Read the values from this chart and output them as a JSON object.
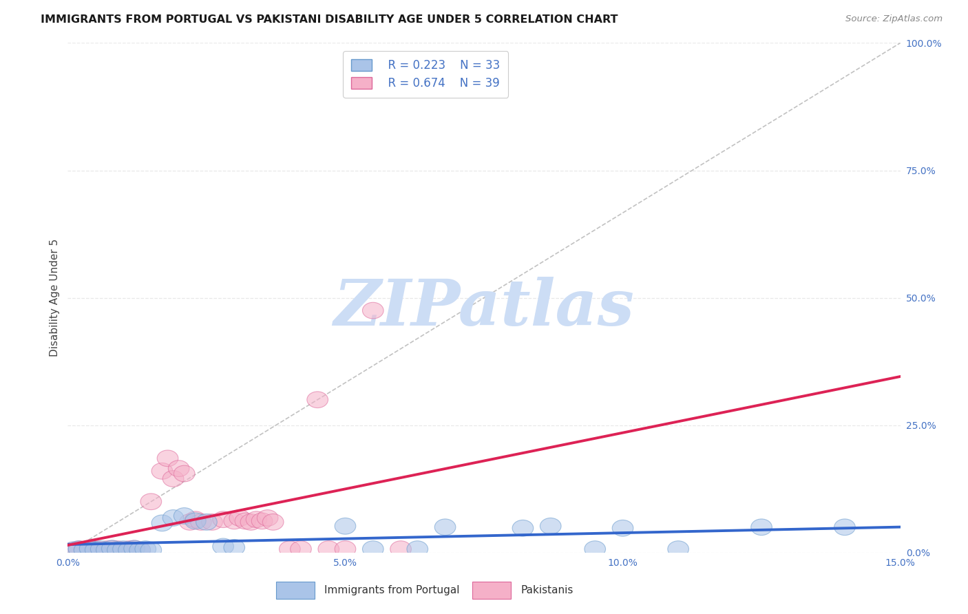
{
  "title": "IMMIGRANTS FROM PORTUGAL VS PAKISTANI DISABILITY AGE UNDER 5 CORRELATION CHART",
  "source": "Source: ZipAtlas.com",
  "ylabel": "Disability Age Under 5",
  "xlim": [
    0.0,
    0.15
  ],
  "ylim": [
    0.0,
    1.0
  ],
  "xticks": [
    0.0,
    0.05,
    0.1,
    0.15
  ],
  "xticklabels": [
    "0.0%",
    "5.0%",
    "10.0%",
    "15.0%"
  ],
  "yticks": [
    0.0,
    0.25,
    0.5,
    0.75,
    1.0
  ],
  "yticklabels": [
    "0.0%",
    "25.0%",
    "50.0%",
    "75.0%",
    "100.0%"
  ],
  "series1_label": "Immigrants from Portugal",
  "series1_R": "R = 0.223",
  "series1_N": "N = 33",
  "series1_marker_color": "#aac4e8",
  "series1_edge_color": "#6699cc",
  "series1_trend_color": "#3366cc",
  "series2_label": "Pakistanis",
  "series2_R": "R = 0.674",
  "series2_N": "N = 39",
  "series2_marker_color": "#f5b0c8",
  "series2_edge_color": "#dd6699",
  "series2_trend_color": "#dd2255",
  "ref_line_color": "#bbbbbb",
  "background_color": "#ffffff",
  "grid_color": "#e8e8e8",
  "title_fontsize": 11.5,
  "axis_label_fontsize": 11,
  "tick_fontsize": 10,
  "legend_fontsize": 12,
  "watermark": "ZIPatlas",
  "watermark_color": "#ccddf5",
  "series1_x": [
    0.001,
    0.002,
    0.003,
    0.004,
    0.005,
    0.006,
    0.007,
    0.008,
    0.009,
    0.01,
    0.011,
    0.012,
    0.013,
    0.014,
    0.015,
    0.017,
    0.019,
    0.021,
    0.023,
    0.025,
    0.028,
    0.03,
    0.05,
    0.055,
    0.063,
    0.068,
    0.082,
    0.087,
    0.095,
    0.1,
    0.11,
    0.125,
    0.14
  ],
  "series1_y": [
    0.005,
    0.007,
    0.005,
    0.008,
    0.005,
    0.007,
    0.005,
    0.008,
    0.005,
    0.007,
    0.005,
    0.008,
    0.005,
    0.007,
    0.005,
    0.058,
    0.068,
    0.072,
    0.062,
    0.06,
    0.012,
    0.01,
    0.052,
    0.007,
    0.007,
    0.05,
    0.048,
    0.052,
    0.007,
    0.048,
    0.007,
    0.05,
    0.05
  ],
  "series2_x": [
    0.001,
    0.002,
    0.003,
    0.004,
    0.005,
    0.006,
    0.007,
    0.008,
    0.009,
    0.01,
    0.011,
    0.012,
    0.013,
    0.015,
    0.017,
    0.018,
    0.019,
    0.02,
    0.021,
    0.022,
    0.023,
    0.024,
    0.026,
    0.028,
    0.03,
    0.031,
    0.032,
    0.033,
    0.034,
    0.035,
    0.036,
    0.037,
    0.04,
    0.042,
    0.045,
    0.047,
    0.05,
    0.055,
    0.06
  ],
  "series2_y": [
    0.005,
    0.007,
    0.005,
    0.008,
    0.007,
    0.005,
    0.007,
    0.008,
    0.007,
    0.005,
    0.007,
    0.008,
    0.005,
    0.1,
    0.16,
    0.185,
    0.145,
    0.165,
    0.155,
    0.06,
    0.065,
    0.06,
    0.06,
    0.065,
    0.062,
    0.068,
    0.062,
    0.06,
    0.065,
    0.062,
    0.068,
    0.06,
    0.007,
    0.007,
    0.3,
    0.007,
    0.007,
    0.475,
    0.007
  ]
}
